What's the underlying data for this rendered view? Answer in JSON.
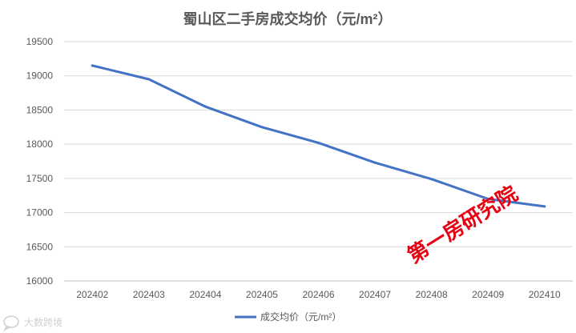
{
  "chart_data": {
    "type": "line",
    "title": "蜀山区二手房成交均价（元/m²）",
    "xlabel": "",
    "ylabel": "",
    "categories": [
      "202402",
      "202403",
      "202404",
      "202405",
      "202406",
      "202407",
      "202408",
      "202409",
      "202410"
    ],
    "series": [
      {
        "name": "成交均价（元/m²）",
        "color": "#4472c4",
        "values": [
          19150,
          18950,
          18550,
          18250,
          18020,
          17730,
          17490,
          17200,
          17090
        ]
      }
    ],
    "ylim": [
      16000,
      19500
    ],
    "yticks": [
      16000,
      16500,
      17000,
      17500,
      18000,
      18500,
      19000,
      19500
    ],
    "grid": true,
    "legend_position": "bottom"
  },
  "watermark": "第一房研究院",
  "source": "大数跨境",
  "icons": {
    "source_logo": "speech-bubble-logo-icon"
  },
  "colors": {
    "grid": "#d9d9d9",
    "axis": "#bfbfbf",
    "text": "#595959",
    "watermark": "#e60012"
  }
}
